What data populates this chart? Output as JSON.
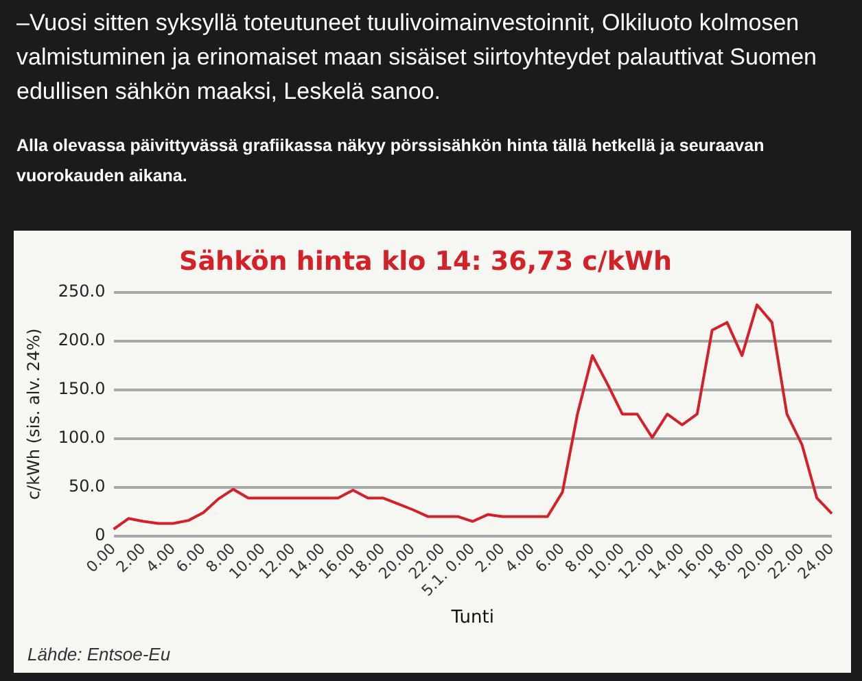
{
  "chart_data": {
    "type": "line",
    "title": "Sähkön hinta klo 14: 36,73 c/kWh",
    "xlabel": "Tunti",
    "ylabel": "c/kWh (sis. alv. 24%)",
    "annotations": [
      "–Vuosi sitten syksyllä toteutuneet tuulivoimainvestoinnit, Olkiluoto kolmosen valmistuminen ja erinomaiset maan sisäiset siirtoyhteydet palauttivat Suomen edullisen sähkön maaksi, Leskelä sanoo.",
      "Alla olevassa päivittyvässä grafiikassa näkyy pörssisähkön hinta tällä hetkellä ja seuraavan vuorokauden aikana.",
      "Lähde: Entsoe-Eu"
    ],
    "categories": [
      "0.00",
      null,
      "2.00",
      null,
      "4.00",
      null,
      "6.00",
      null,
      "8.00",
      null,
      "10.00",
      null,
      "12.00",
      null,
      "14.00",
      null,
      "16.00",
      null,
      "18.00",
      null,
      "20.00",
      null,
      "22.00",
      null,
      "5.1. 0.00",
      null,
      "2.00",
      null,
      "4.00",
      null,
      "6.00",
      null,
      "8.00",
      null,
      "10.00",
      null,
      "12.00",
      null,
      "14.00",
      null,
      "16.00",
      null,
      "18.00",
      null,
      "20.00",
      null,
      "22.00",
      null,
      "24.00"
    ],
    "series": [
      {
        "color": "#d42027",
        "values": [
          7,
          18,
          15,
          13,
          13,
          16,
          24,
          38,
          48,
          39,
          39,
          39,
          39,
          39,
          39,
          39,
          47,
          39,
          39,
          33,
          27,
          20,
          20,
          20,
          15,
          22,
          20,
          20,
          20,
          20,
          45,
          125,
          185,
          156,
          125,
          125,
          101,
          125,
          114,
          125,
          211,
          219,
          185,
          237,
          219,
          125,
          94,
          39,
          23
        ]
      }
    ],
    "ylim": [
      0,
      250
    ],
    "yticks": [
      {
        "value": 0,
        "label": "0"
      },
      {
        "value": 50,
        "label": "50.0"
      },
      {
        "value": 100,
        "label": "100.0"
      },
      {
        "value": 150,
        "label": "150.0"
      },
      {
        "value": 200,
        "label": "200.0"
      },
      {
        "value": 250,
        "label": "250.0"
      }
    ],
    "grid": "y",
    "legend": false,
    "marker": "none",
    "line_style": "solid"
  }
}
